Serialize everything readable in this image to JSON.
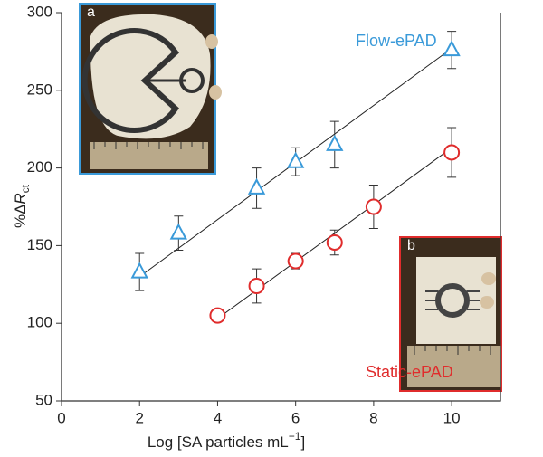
{
  "chart_data": {
    "type": "scatter",
    "xlabel": "Log [SA particles mL",
    "xlabel_sup": "−1",
    "ylabel": "%Δ",
    "ylabel_italic": "R",
    "ylabel_sub": "ct",
    "xlim": [
      0,
      11.25
    ],
    "ylim": [
      50,
      300
    ],
    "xticks": [
      0,
      2,
      4,
      6,
      8,
      10
    ],
    "yticks": [
      50,
      100,
      150,
      200,
      250,
      300
    ],
    "insets": [
      {
        "label": "a"
      },
      {
        "label": "b"
      }
    ],
    "series": [
      {
        "name": "Flow-ePAD",
        "color": "#3a9ad9",
        "marker": "triangle",
        "x": [
          2,
          3,
          5,
          6,
          7,
          10
        ],
        "values": [
          133,
          158,
          187,
          204,
          215,
          276
        ],
        "errors": [
          12,
          11,
          13,
          9,
          15,
          12
        ],
        "fit": {
          "x": [
            2,
            10
          ],
          "y": [
            130,
            277
          ]
        }
      },
      {
        "name": "Static-ePAD",
        "color": "#e02c2c",
        "marker": "circle",
        "x": [
          4,
          5,
          6,
          7,
          8,
          10
        ],
        "values": [
          105,
          124,
          140,
          152,
          175,
          210
        ],
        "errors": [
          null,
          11,
          5,
          8,
          14,
          16
        ],
        "fit": {
          "x": [
            4,
            10
          ],
          "y": [
            103,
            213
          ]
        }
      }
    ]
  }
}
